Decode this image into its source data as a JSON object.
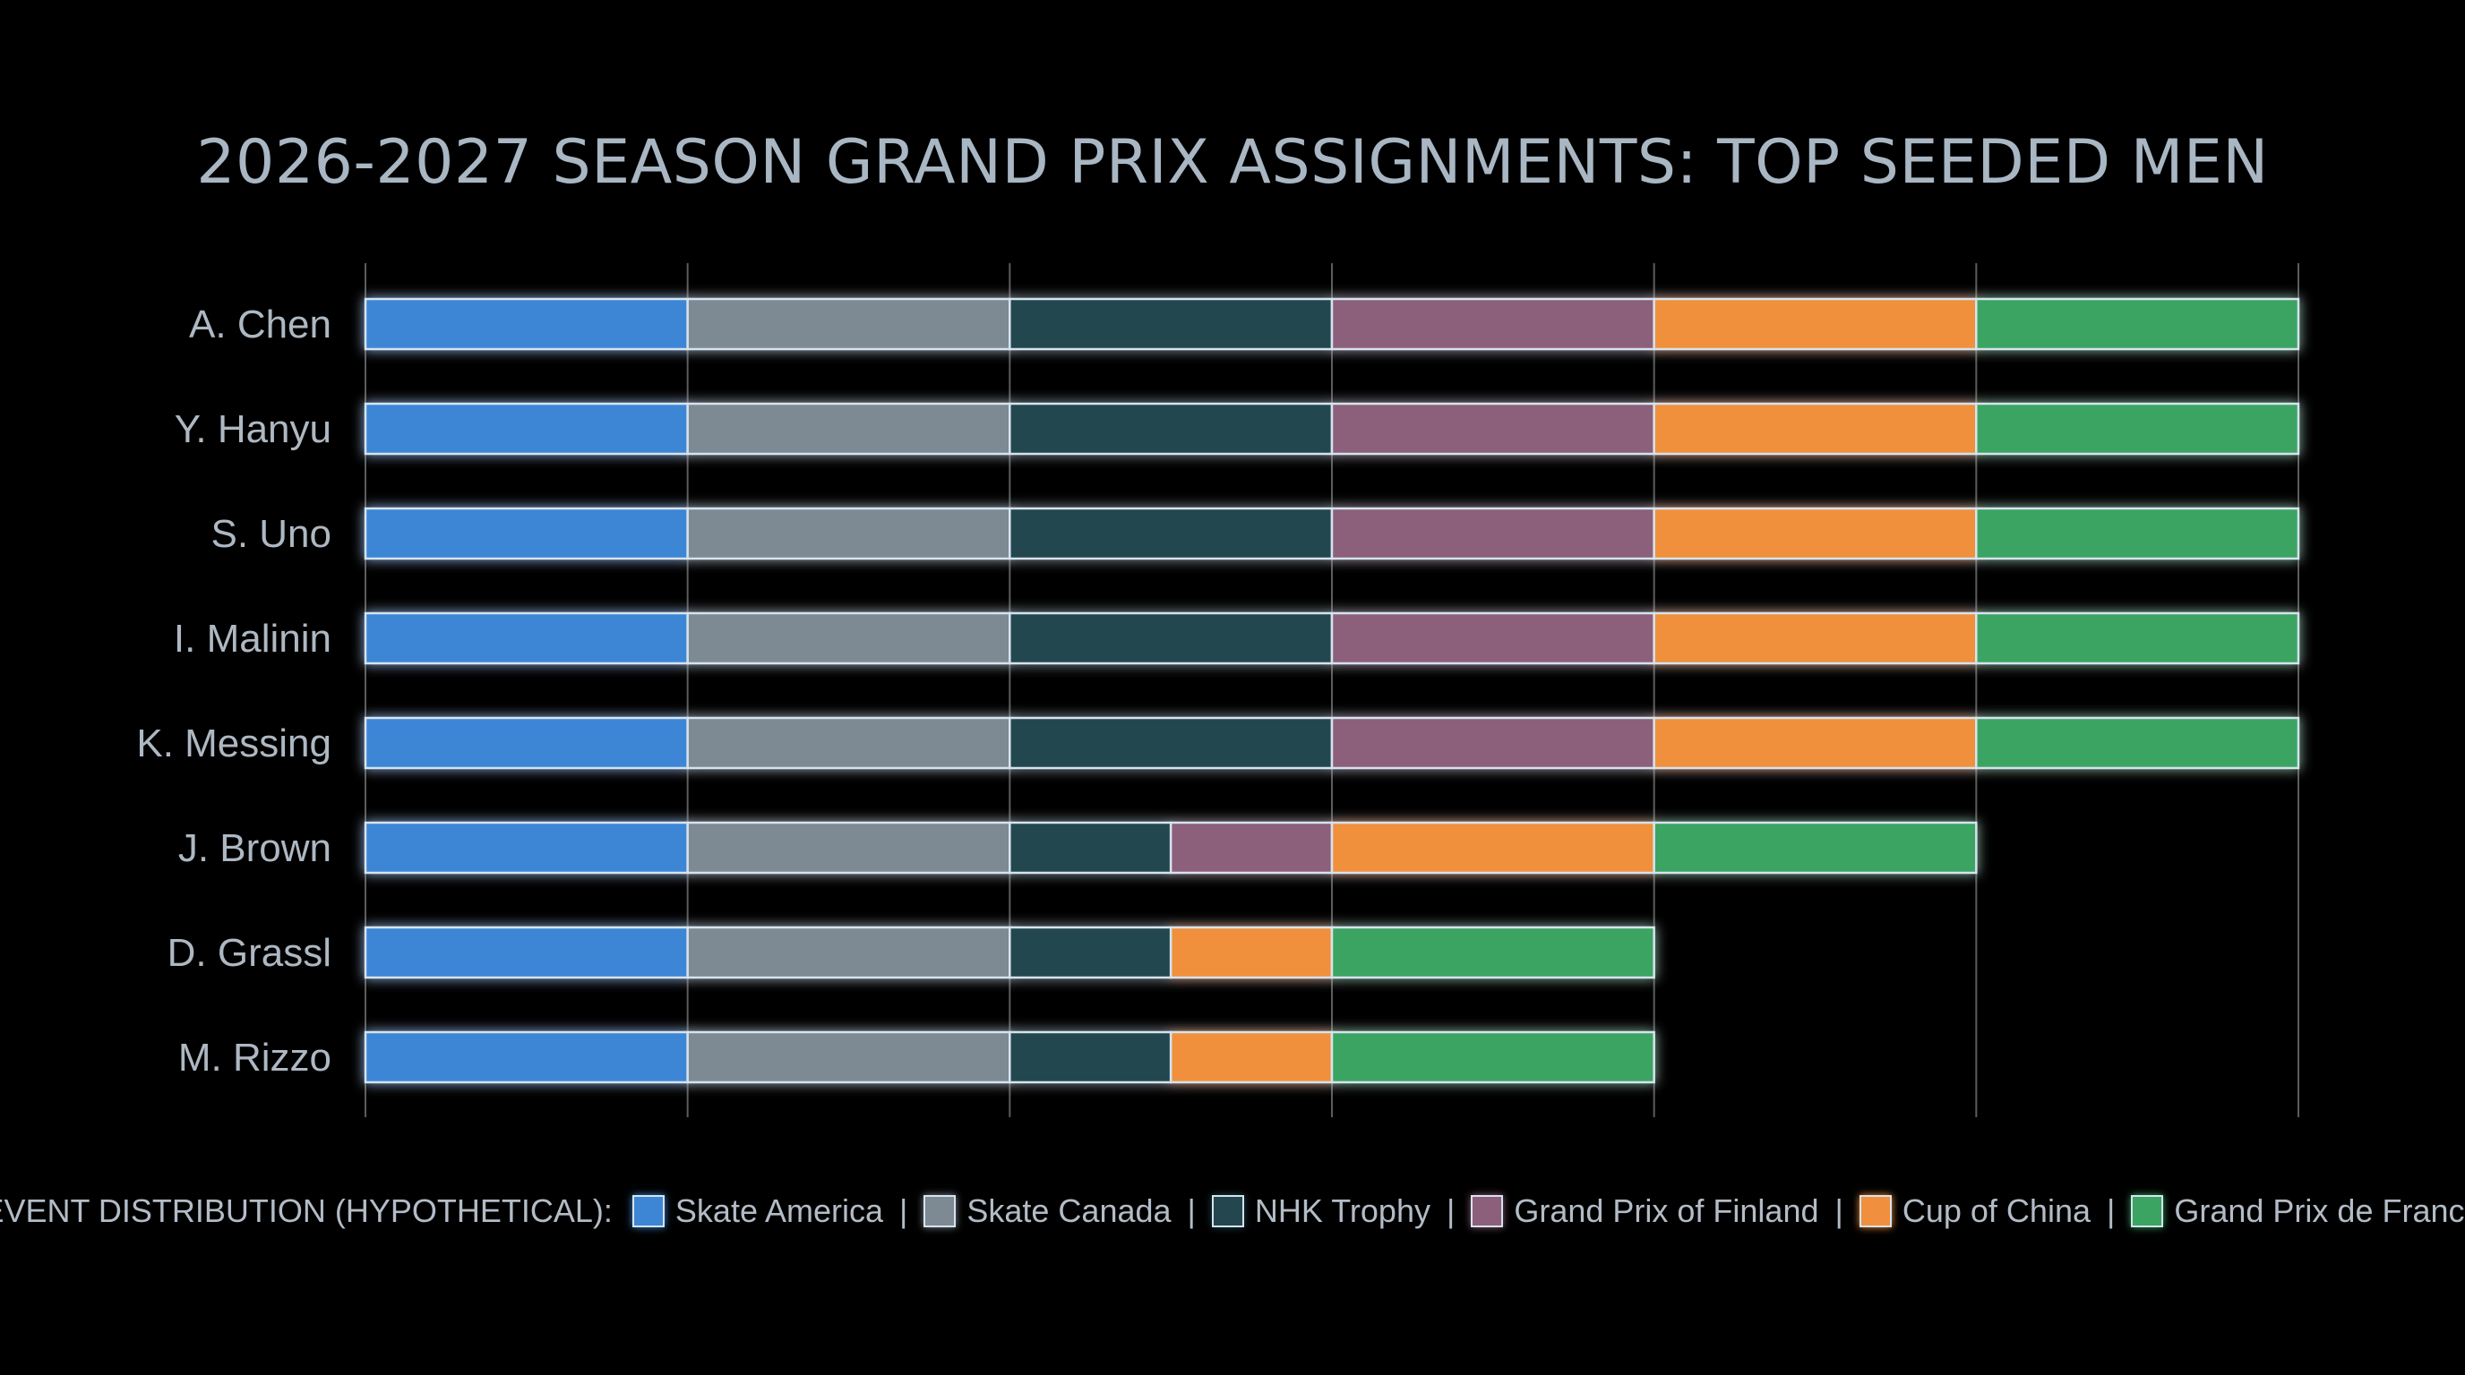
{
  "chart_data": {
    "type": "bar",
    "stacked": true,
    "orientation": "horizontal",
    "title": "2026-2027 SEASON GRAND PRIX ASSIGNMENTS: TOP SEEDED MEN",
    "legend_prefix": "EVENT DISTRIBUTION (HYPOTHETICAL):",
    "legend_separator": "|",
    "legend_placement": "bottom",
    "grid": true,
    "xlim": [
      0,
      6
    ],
    "categories": [
      "A. Chen",
      "Y. Hanyu",
      "S. Uno",
      "I. Malinin",
      "K. Messing",
      "J. Brown",
      "D. Grassl",
      "M. Rizzo"
    ],
    "series": [
      {
        "name": "Skate America",
        "color": "#3d86d6",
        "values": [
          1,
          1,
          1,
          1,
          1,
          1,
          1,
          1
        ]
      },
      {
        "name": "Skate Canada",
        "color": "#7d8a94",
        "values": [
          1,
          1,
          1,
          1,
          1,
          1,
          1,
          1
        ]
      },
      {
        "name": "NHK Trophy",
        "color": "#24474f",
        "values": [
          1,
          1,
          1,
          1,
          1,
          0.5,
          0.5,
          0.5
        ]
      },
      {
        "name": "Grand Prix of Finland",
        "color": "#8c5f7a",
        "values": [
          1,
          1,
          1,
          1,
          1,
          0.5,
          0,
          0
        ]
      },
      {
        "name": "Cup of China",
        "color": "#f0903e",
        "values": [
          1,
          1,
          1,
          1,
          1,
          1,
          0.5,
          0.5
        ]
      },
      {
        "name": "Grand Prix de France",
        "color": "#3ba462",
        "values": [
          1,
          1,
          1,
          1,
          1,
          1,
          1,
          1
        ]
      }
    ]
  }
}
